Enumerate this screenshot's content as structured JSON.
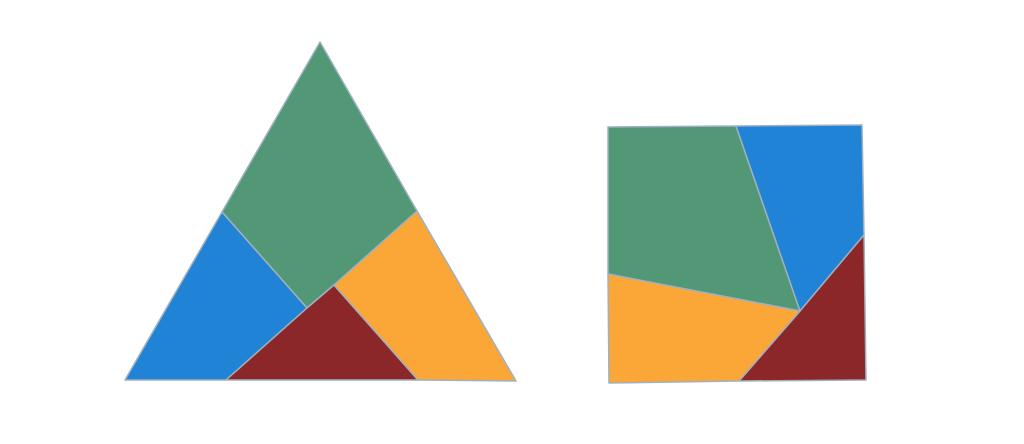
{
  "colors": {
    "green": "#529877",
    "blue": "#2183d6",
    "red": "#8b2729",
    "orange": "#fba737",
    "outline": "#9fb0c0",
    "background": "#ffffff"
  },
  "figures": [
    {
      "shape": "triangle",
      "pieces": [
        "green",
        "blue",
        "red",
        "orange"
      ]
    },
    {
      "shape": "square",
      "pieces": [
        "green",
        "blue",
        "red",
        "orange"
      ]
    }
  ]
}
